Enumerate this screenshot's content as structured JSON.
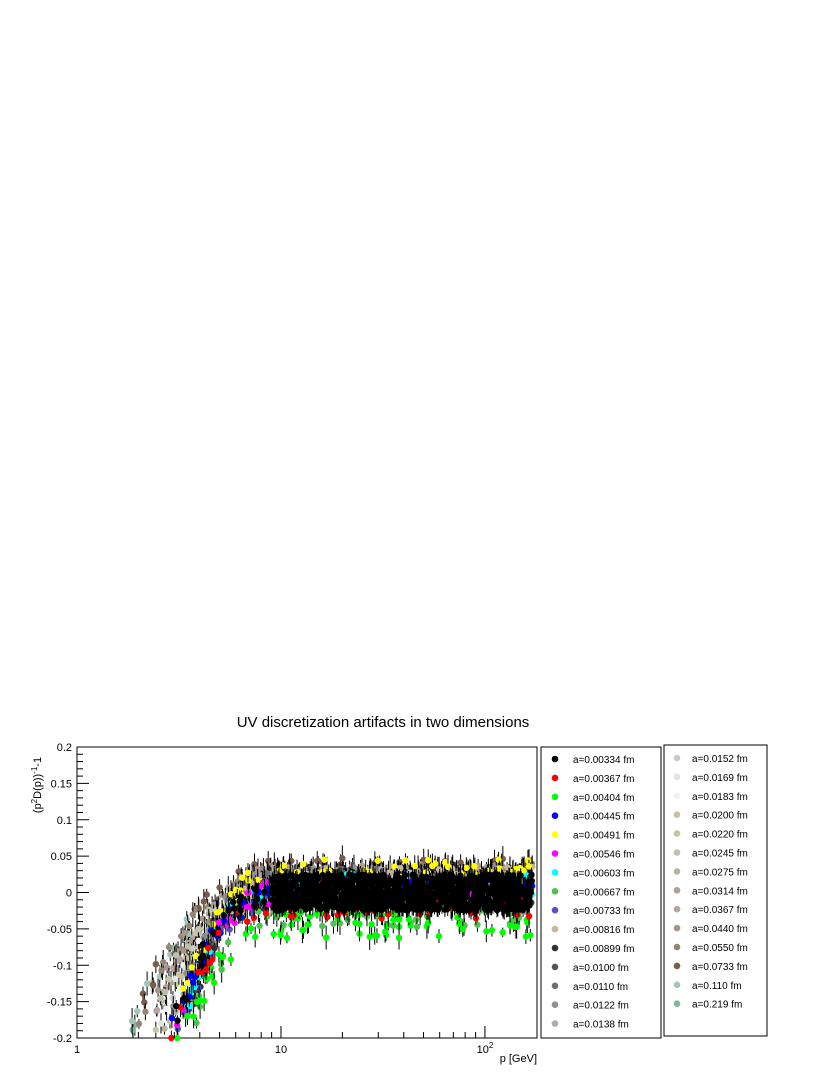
{
  "chart_data": {
    "type": "scatter",
    "title": "UV discretization artifacts in two dimensions",
    "xlabel": "p [GeV]",
    "ylabel_base": "(p",
    "ylabel_sup1": "2",
    "ylabel_mid": "D(p))",
    "ylabel_sup2": "-1",
    "ylabel_tail": "-1",
    "x_scale": "log",
    "xlim": [
      1,
      180
    ],
    "ylim": [
      -0.2,
      0.2
    ],
    "grid": false,
    "x_ticks": [
      {
        "value": 1,
        "label": "1",
        "sup": ""
      },
      {
        "value": 10,
        "label": "10",
        "sup": ""
      },
      {
        "value": 100,
        "label": "10",
        "sup": "2"
      }
    ],
    "y_ticks": [
      {
        "value": 0.2,
        "label": "0.2"
      },
      {
        "value": 0.15,
        "label": "0.15"
      },
      {
        "value": 0.1,
        "label": "0.1"
      },
      {
        "value": 0.05,
        "label": "0.05"
      },
      {
        "value": 0,
        "label": "0"
      },
      {
        "value": -0.05,
        "label": "-0.05"
      },
      {
        "value": -0.1,
        "label": "-0.1"
      },
      {
        "value": -0.15,
        "label": "-0.15"
      },
      {
        "value": -0.2,
        "label": "-0.2"
      }
    ],
    "legend_placement": "right, two boxes",
    "series": [
      {
        "name": "a=0.00334 fm",
        "color": "#000000",
        "pmin": 2.9,
        "level": 0.0
      },
      {
        "name": "a=0.00367 fm",
        "color": "#ff0000",
        "pmin": 2.8,
        "level": -0.02
      },
      {
        "name": "a=0.00404 fm",
        "color": "#00ff00",
        "pmin": 3.0,
        "level": -0.045
      },
      {
        "name": "a=0.00445 fm",
        "color": "#0000ff",
        "pmin": 2.9,
        "level": 0.0
      },
      {
        "name": "a=0.00491 fm",
        "color": "#ffff00",
        "pmin": 3.1,
        "level": 0.03
      },
      {
        "name": "a=0.00546 fm",
        "color": "#ff00ff",
        "pmin": 3.0,
        "level": 0.005
      },
      {
        "name": "a=0.00603 fm",
        "color": "#00ffff",
        "pmin": 3.2,
        "level": 0.01
      },
      {
        "name": "a=0.00667 fm",
        "color": "#4cc34c",
        "pmin": 3.3,
        "level": -0.03
      },
      {
        "name": "a=0.00733 fm",
        "color": "#5b4fc6",
        "pmin": 3.1,
        "level": 0.0
      },
      {
        "name": "a=0.00816 fm",
        "color": "#c8b59a",
        "pmin": 3.4,
        "level": 0.02
      },
      {
        "name": "a=0.00899 fm",
        "color": "#333333",
        "pmin": 3.2,
        "level": 0.0
      },
      {
        "name": "a=0.0100 fm",
        "color": "#555555",
        "pmin": 3.3,
        "level": 0.01
      },
      {
        "name": "a=0.0110 fm",
        "color": "#6f6f6f",
        "pmin": 3.0,
        "level": 0.015
      },
      {
        "name": "a=0.0122 fm",
        "color": "#8f8f8f",
        "pmin": 2.9,
        "level": 0.02
      },
      {
        "name": "a=0.0138 fm",
        "color": "#acacac",
        "pmin": 3.0,
        "level": 0.015
      },
      {
        "name": "a=0.0152 fm",
        "color": "#cacaca",
        "pmin": 2.6,
        "level": 0.01
      },
      {
        "name": "a=0.0169 fm",
        "color": "#e2e2e2",
        "pmin": 2.5,
        "level": 0.01
      },
      {
        "name": "a=0.0183 fm",
        "color": "#f2f2f2",
        "pmin": 2.6,
        "level": 0.005
      },
      {
        "name": "a=0.0200 fm",
        "color": "#c9c0a0",
        "pmin": 2.7,
        "level": 0.01
      },
      {
        "name": "a=0.0220 fm",
        "color": "#c4c6a8",
        "pmin": 2.4,
        "level": 0.01
      },
      {
        "name": "a=0.0245 fm",
        "color": "#bfc0ab",
        "pmin": 2.3,
        "level": 0.015
      },
      {
        "name": "a=0.0275 fm",
        "color": "#b7b3a0",
        "pmin": 2.6,
        "level": 0.01
      },
      {
        "name": "a=0.0314 fm",
        "color": "#aea192",
        "pmin": 2.5,
        "level": 0.02
      },
      {
        "name": "a=0.0367 fm",
        "color": "#b4a59e",
        "pmin": 2.4,
        "level": 0.02
      },
      {
        "name": "a=0.0440 fm",
        "color": "#a89589",
        "pmin": 2.2,
        "level": 0.02
      },
      {
        "name": "a=0.0550 fm",
        "color": "#978674",
        "pmin": 2.0,
        "level": 0.025
      },
      {
        "name": "a=0.0733 fm",
        "color": "#7a5c4c",
        "pmin": 2.0,
        "level": 0.03
      },
      {
        "name": "a=0.110 fm",
        "color": "#a6c4bc",
        "pmin": 1.8,
        "level": 0.02
      },
      {
        "name": "a=0.219 fm",
        "color": "#7cba9c",
        "pmin": 1.8,
        "level": 0.0
      }
    ]
  }
}
